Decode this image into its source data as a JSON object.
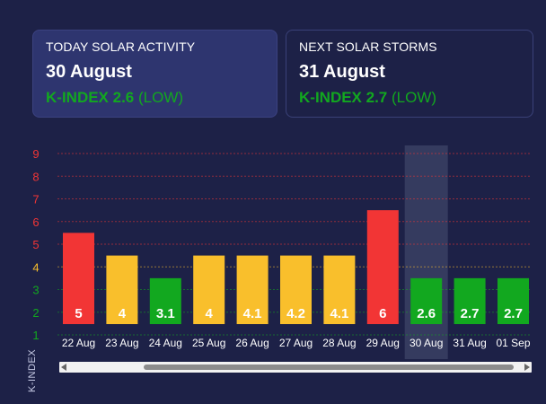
{
  "cards": {
    "today": {
      "title": "TODAY SOLAR ACTIVITY",
      "date": "30 August",
      "k_value": "K-INDEX 2.6",
      "k_level": "(LOW)"
    },
    "next": {
      "title": "NEXT SOLAR STORMS",
      "date": "31 August",
      "k_value": "K-INDEX 2.7",
      "k_level": "(LOW)"
    }
  },
  "colors": {
    "red": "#f23535",
    "yellow": "#f9bf2c",
    "green": "#12a81f",
    "background": "#1d2147",
    "highlight": "#3a3f64"
  },
  "chart_data": {
    "type": "bar",
    "ylabel": "K-INDEX",
    "ylim": [
      1,
      9
    ],
    "yticks": [
      {
        "value": 1,
        "label": "1",
        "color": "#12a81f"
      },
      {
        "value": 2,
        "label": "2",
        "color": "#12a81f"
      },
      {
        "value": 3,
        "label": "3",
        "color": "#12a81f"
      },
      {
        "value": 4,
        "label": "4",
        "color": "#f9bf2c"
      },
      {
        "value": 5,
        "label": "5",
        "color": "#f23535"
      },
      {
        "value": 6,
        "label": "6",
        "color": "#f23535"
      },
      {
        "value": 7,
        "label": "7",
        "color": "#f23535"
      },
      {
        "value": 8,
        "label": "8",
        "color": "#f23535"
      },
      {
        "value": 9,
        "label": "9",
        "color": "#f23535"
      }
    ],
    "grid": true,
    "highlighted_category": "30 Aug",
    "categories": [
      "22 Aug",
      "23 Aug",
      "24 Aug",
      "25 Aug",
      "26 Aug",
      "27 Aug",
      "28 Aug",
      "29 Aug",
      "30 Aug",
      "31 Aug",
      "01 Sep"
    ],
    "values": [
      5.5,
      4.5,
      3.5,
      4.5,
      4.5,
      4.5,
      4.5,
      6.5,
      3.5,
      3.5,
      3.5
    ],
    "labels": [
      "5",
      "4",
      "3.1",
      "4",
      "4.1",
      "4.2",
      "4.1",
      "6",
      "2.6",
      "2.7",
      "2.7"
    ],
    "bar_colors": [
      "red",
      "yellow",
      "green",
      "yellow",
      "yellow",
      "yellow",
      "yellow",
      "red",
      "green",
      "green",
      "green"
    ]
  }
}
